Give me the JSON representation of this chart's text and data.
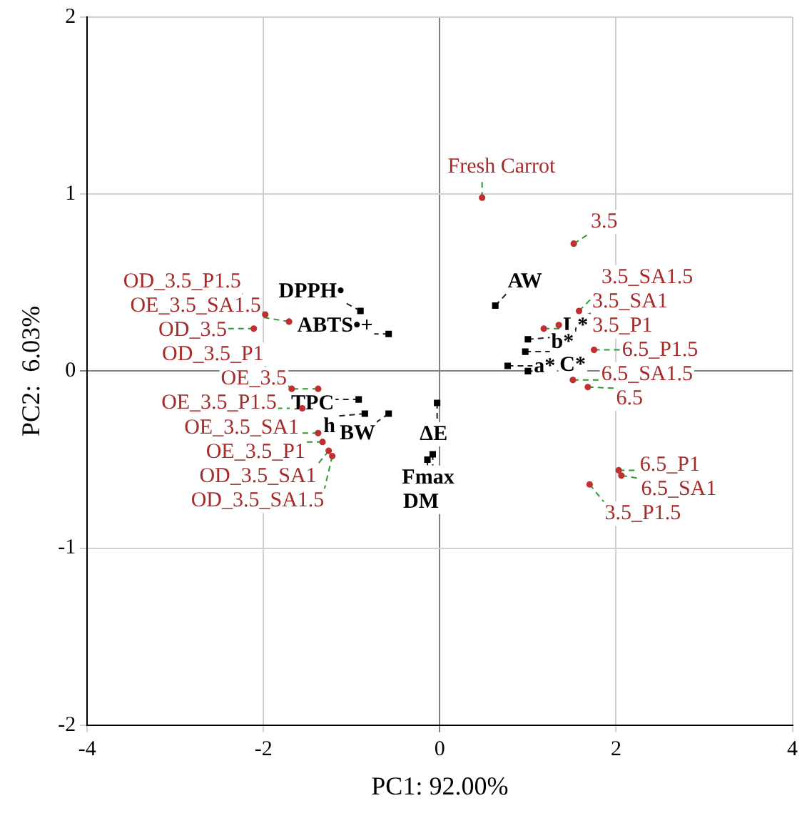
{
  "chart_data": {
    "type": "scatter",
    "xlabel": "PC1: 92.00%",
    "ylabel": "PC2:  6.03%",
    "xlim": [
      -4,
      4
    ],
    "xticks": [
      -4,
      -2,
      0,
      2,
      4
    ],
    "ylim": [
      -2,
      2
    ],
    "yticks": [
      -2,
      -1,
      0,
      1,
      2
    ],
    "grid": true,
    "series": [
      {
        "color": "#c03030",
        "marker": "circle",
        "x": [
          0.48,
          1.52,
          1.18,
          1.35,
          1.58,
          1.75,
          1.51,
          1.68,
          2.03,
          2.06,
          1.7,
          -2.11,
          -1.98,
          -1.71,
          -1.68,
          -1.56,
          -1.38,
          -1.33,
          -1.38,
          -1.26,
          -1.22
        ],
        "values": [
          0.98,
          0.72,
          0.24,
          0.26,
          0.34,
          0.12,
          -0.05,
          -0.09,
          -0.56,
          -0.59,
          -0.64,
          0.24,
          0.32,
          0.28,
          -0.1,
          -0.21,
          -0.1,
          -0.4,
          -0.35,
          -0.45,
          -0.48
        ]
      },
      {
        "color": "#000000",
        "marker": "square",
        "x": [
          -0.9,
          -0.92,
          -0.58,
          0.63,
          1.0,
          0.97,
          1.0,
          0.77,
          -0.85,
          -0.58,
          -0.03,
          -0.14,
          -0.08
        ],
        "values": [
          0.34,
          -0.16,
          0.21,
          0.37,
          0.18,
          0.11,
          0.0,
          0.03,
          -0.24,
          -0.24,
          -0.18,
          -0.5,
          -0.47
        ]
      }
    ],
    "annotations": [
      {
        "text": "Fresh Carrot",
        "x": 0.48,
        "y": 0.98
      },
      {
        "text": "3.5",
        "x": 1.52,
        "y": 0.72
      },
      {
        "text": "3.5_P1",
        "x": 1.18,
        "y": 0.24
      },
      {
        "text": "3.5_SA1",
        "x": 1.35,
        "y": 0.26
      },
      {
        "text": "3.5_SA1.5",
        "x": 1.58,
        "y": 0.34
      },
      {
        "text": "6.5_P1.5",
        "x": 1.75,
        "y": 0.12
      },
      {
        "text": "6.5_SA1.5",
        "x": 1.51,
        "y": -0.05
      },
      {
        "text": "6.5",
        "x": 1.68,
        "y": -0.09
      },
      {
        "text": "6.5_P1",
        "x": 2.03,
        "y": -0.56
      },
      {
        "text": "6.5_SA1",
        "x": 2.06,
        "y": -0.59
      },
      {
        "text": "3.5_P1.5",
        "x": 1.7,
        "y": -0.64
      },
      {
        "text": "OD_3.5",
        "x": -2.11,
        "y": 0.24
      },
      {
        "text": "OD_3.5_P1.5",
        "x": -1.98,
        "y": 0.32
      },
      {
        "text": "OE_3.5_SA1.5",
        "x": -1.71,
        "y": 0.28
      },
      {
        "text": "OD_3.5_P1",
        "x": -1.68,
        "y": -0.1
      },
      {
        "text": "OE_3.5_P1.5",
        "x": -1.56,
        "y": -0.21
      },
      {
        "text": "OE_3.5",
        "x": -1.38,
        "y": -0.1
      },
      {
        "text": "OE_3.5_P1",
        "x": -1.33,
        "y": -0.4
      },
      {
        "text": "OE_3.5_SA1",
        "x": -1.38,
        "y": -0.35
      },
      {
        "text": "OD_3.5_SA1",
        "x": -1.26,
        "y": -0.45
      },
      {
        "text": "OD_3.5_SA1.5",
        "x": -1.22,
        "y": -0.48
      },
      {
        "text": "DPPH•",
        "x": -0.9,
        "y": 0.34
      },
      {
        "text": "TPC",
        "x": -0.92,
        "y": -0.16
      },
      {
        "text": "ABTS•+",
        "x": -0.58,
        "y": 0.21
      },
      {
        "text": "AW",
        "x": 0.63,
        "y": 0.37
      },
      {
        "text": "L*",
        "x": 1.0,
        "y": 0.18
      },
      {
        "text": "b*",
        "x": 0.97,
        "y": 0.11
      },
      {
        "text": "C*",
        "x": 1.0,
        "y": 0.0
      },
      {
        "text": "a*",
        "x": 0.77,
        "y": 0.03
      },
      {
        "text": "h",
        "x": -0.85,
        "y": -0.24
      },
      {
        "text": "BW",
        "x": -0.58,
        "y": -0.24
      },
      {
        "text": "ΔE",
        "x": -0.03,
        "y": -0.18
      },
      {
        "text": "DM",
        "x": -0.14,
        "y": -0.5
      },
      {
        "text": "Fmax",
        "x": -0.08,
        "y": -0.47
      }
    ]
  }
}
